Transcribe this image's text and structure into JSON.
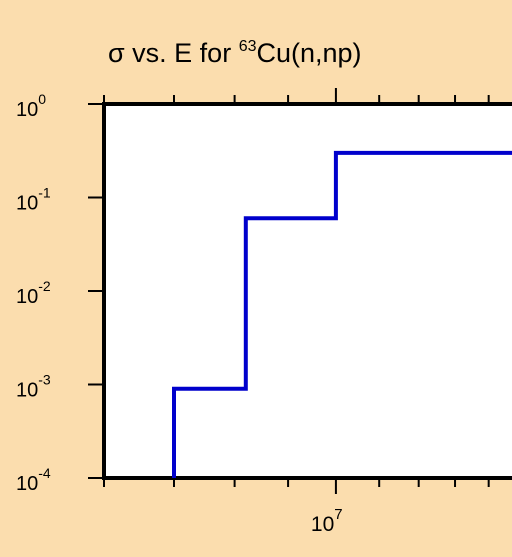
{
  "colors": {
    "background": "#FBDDAE",
    "plot_area": "#FFFFFF",
    "axis": "#000000",
    "series_line": "#0000CC"
  },
  "chart_data": {
    "type": "line",
    "line_style": "step",
    "title": {
      "prefix": "σ vs. E for ",
      "superscript": "63",
      "suffix": "Cu(n,np)"
    },
    "xlabel": "",
    "ylabel": "",
    "x_scale": "log",
    "y_scale": "log",
    "xlim": [
      6000000,
      15000000
    ],
    "ylim": [
      0.0001,
      1
    ],
    "grid": false,
    "y_ticks": [
      {
        "value": 1,
        "base": "10",
        "exp": "0"
      },
      {
        "value": 0.1,
        "base": "10",
        "exp": "-1"
      },
      {
        "value": 0.01,
        "base": "10",
        "exp": "-2"
      },
      {
        "value": 0.001,
        "base": "10",
        "exp": "-3"
      },
      {
        "value": 0.0001,
        "base": "10",
        "exp": "-4"
      }
    ],
    "x_major_ticks": [
      {
        "value": 10000000,
        "base": "10",
        "exp": "7"
      }
    ],
    "x_minor_ticks": [
      6000000,
      7000000,
      8000000,
      9000000,
      11000000,
      12000000,
      13000000,
      14000000
    ],
    "series": [
      {
        "x": [
          7000000,
          7000000,
          8200000,
          8200000,
          10000000,
          10000000,
          15000000
        ],
        "y": [
          0.0001,
          0.0009,
          0.0009,
          0.06,
          0.06,
          0.3,
          0.3
        ]
      }
    ]
  }
}
